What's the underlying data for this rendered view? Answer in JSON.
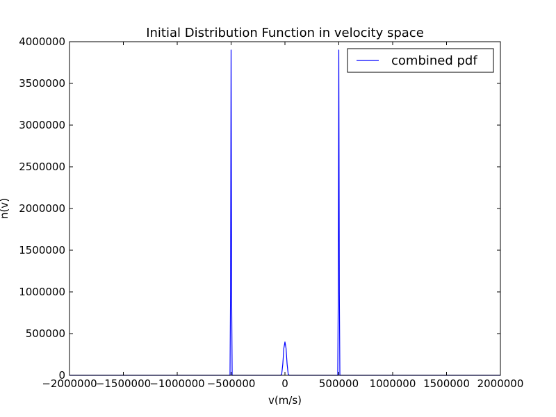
{
  "chart_data": {
    "type": "line",
    "title": "Initial Distribution Function in velocity space",
    "xlabel": "v(m/s)",
    "ylabel": "n(v)",
    "xlim": [
      -2000000,
      2000000
    ],
    "ylim": [
      0,
      4000000
    ],
    "xticks": [
      -2000000,
      -1500000,
      -1000000,
      -500000,
      0,
      500000,
      1000000,
      1500000,
      2000000
    ],
    "xtick_labels": [
      "−2000000",
      "−1500000",
      "−1000000",
      "−500000",
      "0",
      "500000",
      "1000000",
      "1500000",
      "2000000"
    ],
    "yticks": [
      0,
      500000,
      1000000,
      1500000,
      2000000,
      2500000,
      3000000,
      3500000,
      4000000
    ],
    "ytick_labels": [
      "0",
      "500000",
      "1000000",
      "1500000",
      "2000000",
      "2500000",
      "3000000",
      "3500000",
      "4000000"
    ],
    "grid": false,
    "legend_position": "top-right",
    "series": [
      {
        "name": "combined pdf",
        "color": "#0000ff",
        "x": [
          -2000000,
          -515000,
          -510000,
          -505000,
          -500000,
          -495000,
          -490000,
          -485000,
          -40000,
          -30000,
          -20000,
          -10000,
          0,
          10000,
          20000,
          30000,
          40000,
          485000,
          490000,
          495000,
          500000,
          505000,
          510000,
          515000,
          2000000
        ],
        "y": [
          0,
          0,
          0,
          1000000,
          3900000,
          1000000,
          0,
          0,
          0,
          15000,
          135000,
          325000,
          400000,
          325000,
          135000,
          15000,
          0,
          0,
          0,
          1000000,
          3900000,
          1000000,
          0,
          0,
          0
        ]
      }
    ]
  }
}
